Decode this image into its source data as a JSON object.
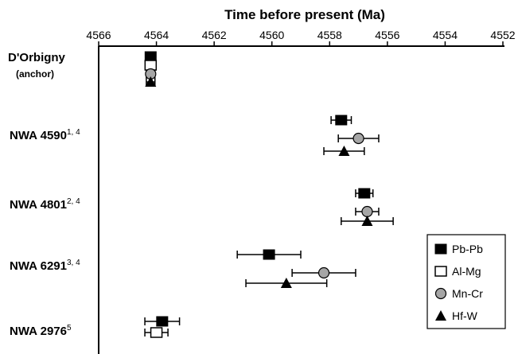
{
  "chart_data": {
    "type": "scatter",
    "title": "",
    "xlabel": "Time before present (Ma)",
    "ylabel": "",
    "xlim": [
      4566,
      4552
    ],
    "x_reversed": true,
    "x_ticks": [
      4566,
      4564,
      4562,
      4560,
      4558,
      4556,
      4554,
      4552
    ],
    "grid": false,
    "legend_position": "right",
    "rows": [
      {
        "label": "D'Orbigny",
        "sublabel": "(anchor)",
        "sup": ""
      },
      {
        "label": "NWA 4590",
        "sublabel": "",
        "sup": "1, 4"
      },
      {
        "label": "NWA 4801",
        "sublabel": "",
        "sup": "2, 4"
      },
      {
        "label": "NWA 6291",
        "sublabel": "",
        "sup": "3, 4"
      },
      {
        "label": "NWA 2976",
        "sublabel": "",
        "sup": "5"
      }
    ],
    "series": [
      {
        "name": "Pb-Pb",
        "marker": "square-filled",
        "points": [
          {
            "row": 0,
            "x": 4564.2,
            "err": 0.15
          },
          {
            "row": 1,
            "x": 4557.6,
            "err": 0.35
          },
          {
            "row": 2,
            "x": 4556.8,
            "err": 0.3
          },
          {
            "row": 3,
            "x": 4560.1,
            "err": 1.1
          },
          {
            "row": 4,
            "x": 4563.8,
            "err": 0.6
          }
        ]
      },
      {
        "name": "Al-Mg",
        "marker": "square-open",
        "points": [
          {
            "row": 0,
            "x": 4564.2,
            "err": 0.15
          },
          {
            "row": 4,
            "x": 4564.0,
            "err": 0.4
          }
        ]
      },
      {
        "name": "Mn-Cr",
        "marker": "circle-grey",
        "points": [
          {
            "row": 0,
            "x": 4564.2,
            "err": 0.15
          },
          {
            "row": 1,
            "x": 4557.0,
            "err": 0.7
          },
          {
            "row": 2,
            "x": 4556.7,
            "err": 0.4
          },
          {
            "row": 3,
            "x": 4558.2,
            "err": 1.1
          }
        ]
      },
      {
        "name": "Hf-W",
        "marker": "triangle-filled",
        "points": [
          {
            "row": 0,
            "x": 4564.2,
            "err": 0.15
          },
          {
            "row": 1,
            "x": 4557.5,
            "err": 0.7
          },
          {
            "row": 2,
            "x": 4556.7,
            "err": 0.9
          },
          {
            "row": 3,
            "x": 4559.5,
            "err": 1.4
          }
        ]
      }
    ]
  }
}
